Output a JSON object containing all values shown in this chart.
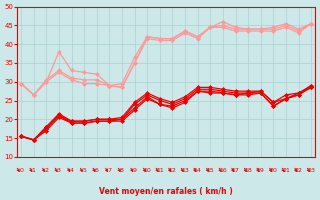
{
  "xlabel": "Vent moyen/en rafales ( km/h )",
  "ylim": [
    10,
    50
  ],
  "xlim": [
    -0.3,
    23.3
  ],
  "yticks": [
    10,
    15,
    20,
    25,
    30,
    35,
    40,
    45,
    50
  ],
  "xticks": [
    0,
    1,
    2,
    3,
    4,
    5,
    6,
    7,
    8,
    9,
    10,
    11,
    12,
    13,
    14,
    15,
    16,
    17,
    18,
    19,
    20,
    21,
    22,
    23
  ],
  "bg_color": "#cce8e8",
  "grid_color": "#aad0d0",
  "series_dark": [
    [
      15.5,
      14.5,
      17.0,
      20.5,
      19.0,
      19.0,
      19.5,
      19.5,
      19.5,
      22.5,
      25.5,
      24.0,
      23.0,
      24.5,
      27.5,
      27.0,
      27.0,
      26.5,
      27.0,
      27.0,
      23.5,
      25.5,
      26.5,
      29.0
    ],
    [
      15.5,
      14.5,
      17.5,
      21.0,
      19.0,
      19.0,
      19.5,
      19.5,
      20.0,
      23.0,
      26.0,
      24.0,
      23.5,
      25.0,
      27.5,
      27.5,
      27.0,
      26.5,
      26.5,
      27.0,
      23.5,
      25.5,
      26.5,
      28.5
    ],
    [
      15.5,
      14.5,
      18.0,
      21.0,
      19.5,
      19.5,
      20.0,
      20.0,
      20.0,
      24.0,
      26.5,
      25.0,
      24.0,
      25.5,
      28.0,
      28.0,
      27.5,
      27.0,
      27.0,
      27.5,
      24.5,
      25.5,
      27.0,
      28.5
    ],
    [
      15.5,
      14.5,
      18.0,
      21.5,
      19.5,
      19.5,
      20.0,
      20.0,
      20.5,
      24.5,
      27.0,
      25.5,
      24.5,
      26.0,
      28.5,
      28.5,
      28.0,
      27.5,
      27.5,
      27.5,
      24.5,
      26.5,
      27.0,
      29.0
    ]
  ],
  "series_light": [
    [
      29.5,
      26.5,
      30.0,
      38.0,
      33.0,
      32.5,
      32.0,
      29.0,
      28.5,
      35.0,
      41.5,
      41.0,
      41.0,
      43.0,
      41.5,
      44.5,
      46.0,
      44.5,
      44.0,
      44.0,
      44.5,
      45.5,
      44.0,
      45.5
    ],
    [
      29.5,
      26.5,
      30.0,
      32.5,
      30.5,
      29.5,
      29.5,
      29.0,
      28.5,
      35.0,
      42.0,
      41.5,
      41.5,
      43.5,
      42.0,
      44.5,
      44.5,
      43.5,
      43.5,
      43.5,
      43.5,
      44.5,
      43.0,
      45.5
    ],
    [
      29.5,
      26.5,
      30.5,
      33.0,
      31.0,
      30.5,
      30.5,
      29.0,
      29.5,
      36.5,
      42.0,
      41.5,
      41.5,
      43.5,
      42.0,
      44.5,
      45.0,
      44.0,
      44.0,
      44.0,
      44.0,
      45.0,
      43.5,
      45.5
    ]
  ],
  "dark_color": "#ee0000",
  "light_color": "#ff9999",
  "marker_size": 2.0
}
